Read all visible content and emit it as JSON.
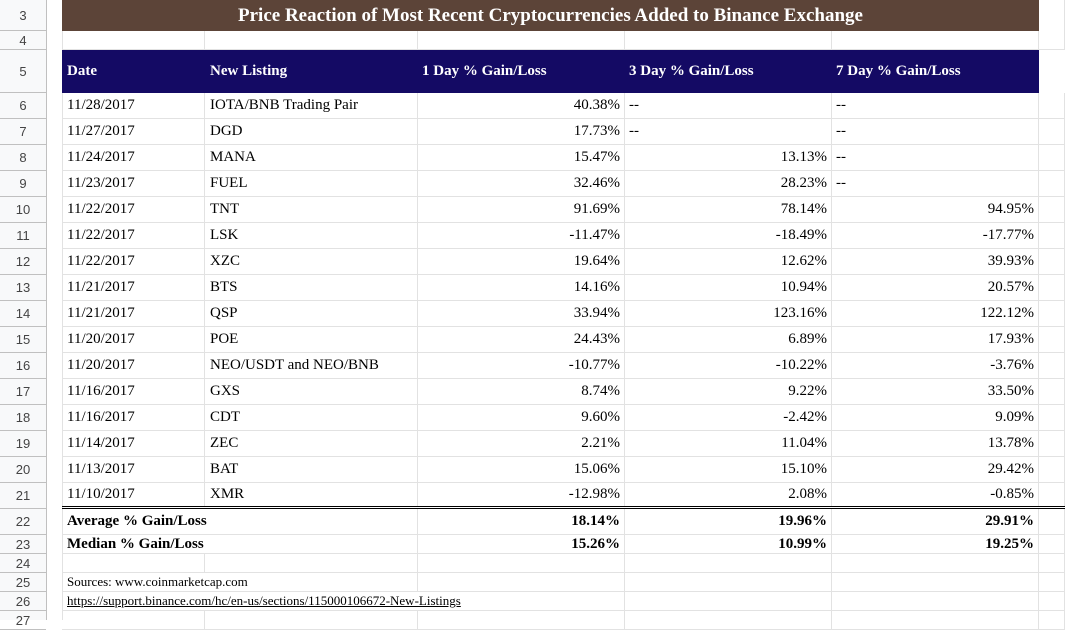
{
  "row_numbers": [
    "3",
    "4",
    "5",
    "6",
    "7",
    "8",
    "9",
    "10",
    "11",
    "12",
    "13",
    "14",
    "15",
    "16",
    "17",
    "18",
    "19",
    "20",
    "21",
    "22",
    "23",
    "24",
    "25",
    "26",
    "27"
  ],
  "title": "Price Reaction of Most Recent Cryptocurrencies Added to Binance Exchange",
  "headers": {
    "date": "Date",
    "listing": "New Listing",
    "day1": "1 Day % Gain/Loss",
    "day3": "3 Day % Gain/Loss",
    "day7": "7 Day % Gain/Loss"
  },
  "rows": [
    {
      "date": "11/28/2017",
      "listing": "IOTA/BNB Trading Pair",
      "day1": "40.38%",
      "day3": "--",
      "day7": "--"
    },
    {
      "date": "11/27/2017",
      "listing": "DGD",
      "day1": "17.73%",
      "day3": "--",
      "day7": "--"
    },
    {
      "date": "11/24/2017",
      "listing": "MANA",
      "day1": "15.47%",
      "day3": "13.13%",
      "day7": "--"
    },
    {
      "date": "11/23/2017",
      "listing": "FUEL",
      "day1": "32.46%",
      "day3": "28.23%",
      "day7": "--"
    },
    {
      "date": "11/22/2017",
      "listing": "TNT",
      "day1": "91.69%",
      "day3": "78.14%",
      "day7": "94.95%"
    },
    {
      "date": "11/22/2017",
      "listing": "LSK",
      "day1": "-11.47%",
      "day3": "-18.49%",
      "day7": "-17.77%"
    },
    {
      "date": "11/22/2017",
      "listing": "XZC",
      "day1": "19.64%",
      "day3": "12.62%",
      "day7": "39.93%"
    },
    {
      "date": "11/21/2017",
      "listing": "BTS",
      "day1": "14.16%",
      "day3": "10.94%",
      "day7": "20.57%"
    },
    {
      "date": "11/21/2017",
      "listing": "QSP",
      "day1": "33.94%",
      "day3": "123.16%",
      "day7": "122.12%"
    },
    {
      "date": "11/20/2017",
      "listing": "POE",
      "day1": "24.43%",
      "day3": "6.89%",
      "day7": "17.93%"
    },
    {
      "date": "11/20/2017",
      "listing": "NEO/USDT and NEO/BNB",
      "day1": "-10.77%",
      "day3": "-10.22%",
      "day7": "-3.76%"
    },
    {
      "date": "11/16/2017",
      "listing": "GXS",
      "day1": "8.74%",
      "day3": "9.22%",
      "day7": "33.50%"
    },
    {
      "date": "11/16/2017",
      "listing": "CDT",
      "day1": "9.60%",
      "day3": "-2.42%",
      "day7": "9.09%"
    },
    {
      "date": "11/14/2017",
      "listing": "ZEC",
      "day1": "2.21%",
      "day3": "11.04%",
      "day7": "13.78%"
    },
    {
      "date": "11/13/2017",
      "listing": "BAT",
      "day1": "15.06%",
      "day3": "15.10%",
      "day7": "29.42%"
    },
    {
      "date": "11/10/2017",
      "listing": "XMR",
      "day1": "-12.98%",
      "day3": "2.08%",
      "day7": "-0.85%"
    }
  ],
  "summary": {
    "average": {
      "label": "Average % Gain/Loss",
      "day1": "18.14%",
      "day3": "19.96%",
      "day7": "29.91%"
    },
    "median": {
      "label": "Median % Gain/Loss",
      "day1": "15.26%",
      "day3": "10.99%",
      "day7": "19.25%"
    }
  },
  "sources": {
    "line1": "Sources: www.coinmarketcap.com",
    "line2": "https://support.binance.com/hc/en-us/sections/115000106672-New-Listings"
  },
  "colors": {
    "title_bg": "#5c4438",
    "header_bg": "#140a64"
  }
}
